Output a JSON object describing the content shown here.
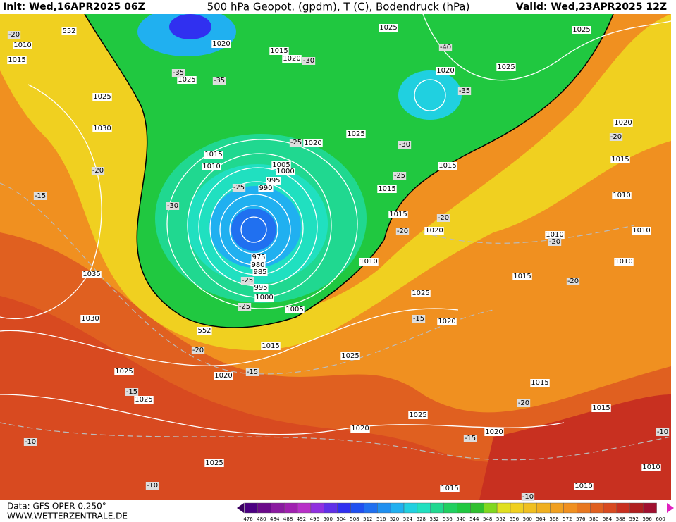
{
  "header": {
    "init": "Init: Wed,16APR2025 06Z",
    "title": "500 hPa Geopot. (gpdm), T (C), Bodendruck (hPa)",
    "valid": "Valid: Wed,23APR2025 12Z"
  },
  "footer": {
    "data": "Data: GFS OPER 0.250°",
    "site": "WWW.WETTERZENTRALE.DE"
  },
  "legend": {
    "ticks": [
      476,
      480,
      484,
      488,
      492,
      496,
      500,
      504,
      508,
      512,
      516,
      520,
      524,
      528,
      532,
      536,
      540,
      544,
      548,
      552,
      556,
      560,
      564,
      568,
      572,
      576,
      580,
      584,
      588,
      592,
      596,
      600
    ],
    "colors": [
      "#4b0082",
      "#6a0a8a",
      "#8a1aa0",
      "#a020b0",
      "#b830c8",
      "#9030e0",
      "#6030e8",
      "#3030f0",
      "#2050f0",
      "#2070f0",
      "#2090f0",
      "#20b0f0",
      "#20d0e0",
      "#20e0c0",
      "#20d890",
      "#20d060",
      "#20c840",
      "#30c030",
      "#80d820",
      "#e0e020",
      "#f0d020",
      "#f0c020",
      "#f0b020",
      "#f0a020",
      "#f09020",
      "#e87820",
      "#e06020",
      "#d84a20",
      "#c83020",
      "#b02020",
      "#a01030"
    ]
  },
  "pressure_labels": [
    "552",
    "1010",
    "1015",
    "1025",
    "1030",
    "1020",
    "1015",
    "1020",
    "1025",
    "1025",
    "1025",
    "1025",
    "1020",
    "1025",
    "1020",
    "1015",
    "1010",
    "1005",
    "1000",
    "995",
    "990",
    "1015",
    "1015",
    "1015",
    "1020",
    "1020",
    "1015",
    "1010",
    "1010",
    "1010",
    "1010",
    "1015",
    "1035",
    "975",
    "980",
    "985",
    "995",
    "1000",
    "1005",
    "1010",
    "1025",
    "1020",
    "1030",
    "552",
    "1015",
    "1025",
    "1025",
    "1020",
    "1025",
    "1015",
    "1015",
    "1025",
    "1020",
    "1020",
    "1025",
    "1010",
    "1015",
    "1010"
  ],
  "temperature_labels": [
    "-20",
    "-35",
    "-35",
    "-30",
    "-40",
    "-35",
    "-25",
    "-30",
    "-25",
    "-20",
    "-15",
    "-25",
    "-30",
    "-20",
    "-20",
    "-25",
    "-25",
    "-20",
    "-20",
    "-20",
    "-15",
    "-20",
    "-15",
    "-15",
    "-20",
    "-10",
    "-15",
    "-10",
    "-10",
    "-10"
  ]
}
